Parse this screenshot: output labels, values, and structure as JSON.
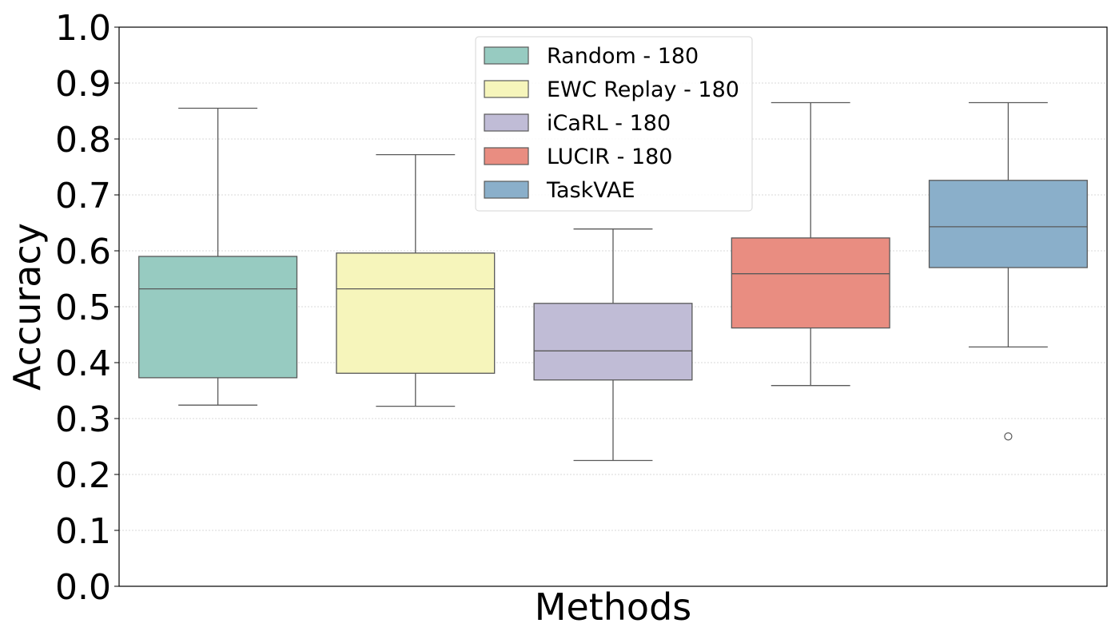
{
  "chart_data": {
    "type": "boxplot",
    "title": "",
    "xlabel": "Methods",
    "ylabel": "Accuracy",
    "ylim": [
      0.0,
      1.0
    ],
    "yticks": [
      "0.0",
      "0.1",
      "0.2",
      "0.3",
      "0.4",
      "0.5",
      "0.6",
      "0.7",
      "0.8",
      "0.9",
      "1.0"
    ],
    "grid": "horizontal dotted",
    "legend_position": "top-center",
    "series": [
      {
        "name": "Random - 180",
        "color": "#97cbc1",
        "whisker_low": 0.324,
        "q1": 0.373,
        "median": 0.532,
        "q3": 0.59,
        "whisker_high": 0.855,
        "outliers": []
      },
      {
        "name": "EWC Replay - 180",
        "color": "#f6f5bb",
        "whisker_low": 0.322,
        "q1": 0.381,
        "median": 0.532,
        "q3": 0.596,
        "whisker_high": 0.772,
        "outliers": []
      },
      {
        "name": "iCaRL - 180",
        "color": "#c0bcd6",
        "whisker_low": 0.225,
        "q1": 0.369,
        "median": 0.421,
        "q3": 0.506,
        "whisker_high": 0.639,
        "outliers": []
      },
      {
        "name": "LUCIR - 180",
        "color": "#e98d81",
        "whisker_low": 0.359,
        "q1": 0.462,
        "median": 0.559,
        "q3": 0.623,
        "whisker_high": 0.865,
        "outliers": []
      },
      {
        "name": "TaskVAE",
        "color": "#8aafca",
        "whisker_low": 0.428,
        "q1": 0.57,
        "median": 0.643,
        "q3": 0.726,
        "whisker_high": 0.865,
        "outliers": [
          0.268
        ]
      }
    ]
  }
}
